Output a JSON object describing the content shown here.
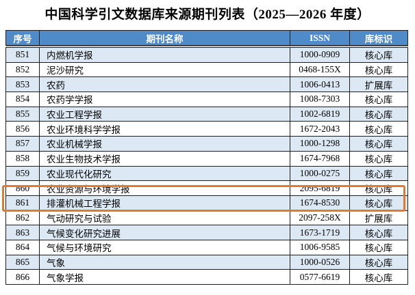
{
  "title": "中国科学引文数据库来源期刊列表（2025—2026 年度）",
  "table": {
    "columns": [
      "序号",
      "期刊名称",
      "ISSN",
      "库标识"
    ],
    "rows": [
      {
        "no": "851",
        "name": "内燃机学报",
        "issn": "1000-0909",
        "db": "核心库"
      },
      {
        "no": "852",
        "name": "泥沙研究",
        "issn": "0468-155X",
        "db": "核心库"
      },
      {
        "no": "853",
        "name": "农药",
        "issn": "1006-0413",
        "db": "扩展库"
      },
      {
        "no": "854",
        "name": "农药学学报",
        "issn": "1008-7303",
        "db": "核心库"
      },
      {
        "no": "855",
        "name": "农业工程学报",
        "issn": "1002-6819",
        "db": "核心库"
      },
      {
        "no": "856",
        "name": "农业环境科学学报",
        "issn": "1672-2043",
        "db": "核心库"
      },
      {
        "no": "857",
        "name": "农业机械学报",
        "issn": "1000-1298",
        "db": "核心库"
      },
      {
        "no": "858",
        "name": "农业生物技术学报",
        "issn": "1674-7968",
        "db": "核心库"
      },
      {
        "no": "859",
        "name": "农业现代化研究",
        "issn": "1000-0275",
        "db": "核心库"
      },
      {
        "no": "860",
        "name": "农业资源与环境学报",
        "issn": "2095-6819",
        "db": "核心库"
      },
      {
        "no": "861",
        "name": "排灌机械工程学报",
        "issn": "1674-8530",
        "db": "核心库"
      },
      {
        "no": "862",
        "name": "气动研究与试验",
        "issn": "2097-258X",
        "db": "扩展库"
      },
      {
        "no": "863",
        "name": "气候变化研究进展",
        "issn": "1673-1719",
        "db": "核心库"
      },
      {
        "no": "864",
        "name": "气候与环境研究",
        "issn": "1006-9585",
        "db": "核心库"
      },
      {
        "no": "865",
        "name": "气象",
        "issn": "1000-0526",
        "db": "核心库"
      },
      {
        "no": "866",
        "name": "气象学报",
        "issn": "0577-6619",
        "db": "核心库"
      }
    ],
    "highlighted_row_no": "861"
  },
  "colors": {
    "header_bg": "#4e8bc8",
    "header_text": "#ffffff",
    "row_alt_bg": "#dce8f4",
    "border": "#1c1c1c",
    "highlight_border": "#e5772e"
  }
}
